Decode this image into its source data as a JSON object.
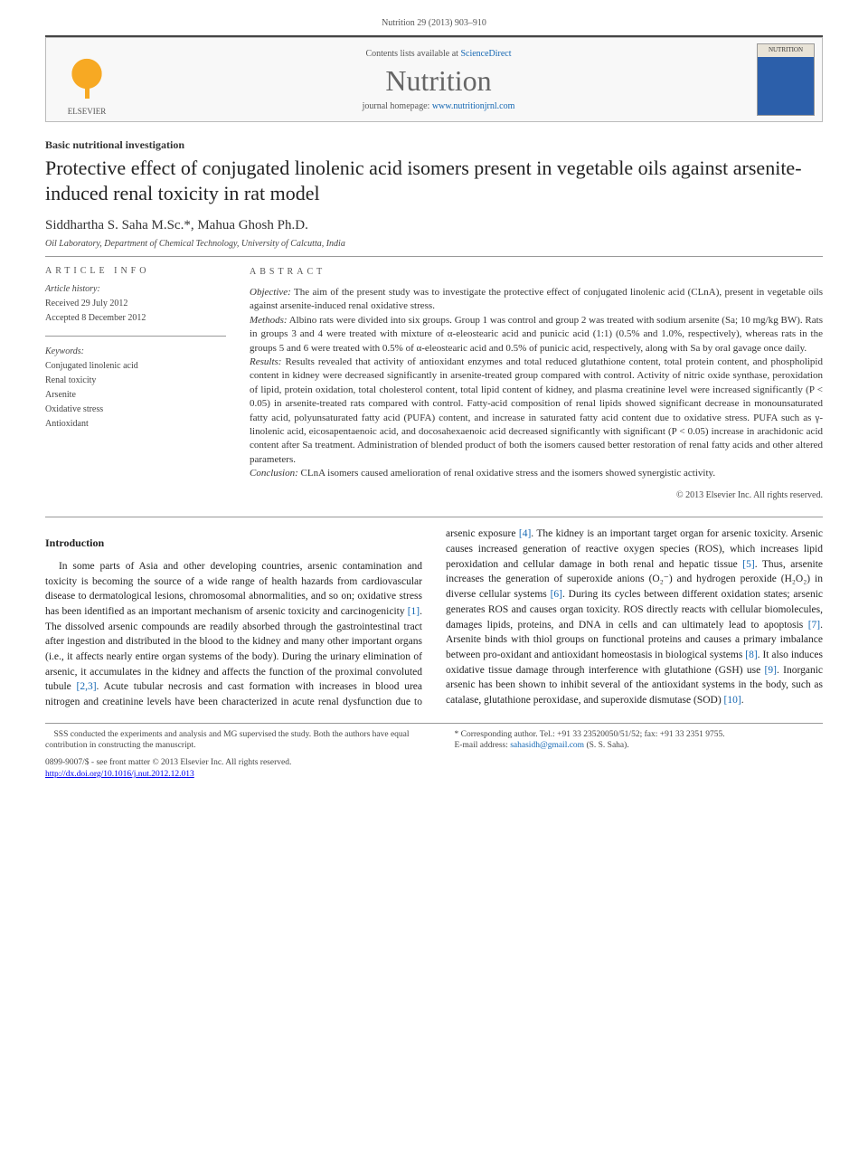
{
  "running_header": "Nutrition 29 (2013) 903–910",
  "masthead": {
    "publisher": "ELSEVIER",
    "contents_prefix": "Contents lists available at ",
    "contents_link_text": "ScienceDirect",
    "journal_name": "Nutrition",
    "homepage_prefix": "journal homepage: ",
    "homepage_link_text": "www.nutritionjrnl.com",
    "cover_label": "NUTRITION"
  },
  "article": {
    "type": "Basic nutritional investigation",
    "title": "Protective effect of conjugated linolenic acid isomers present in vegetable oils against arsenite-induced renal toxicity in rat model",
    "authors": "Siddhartha S. Saha M.Sc.*, Mahua Ghosh Ph.D.",
    "affiliation": "Oil Laboratory, Department of Chemical Technology, University of Calcutta, India"
  },
  "info": {
    "heading": "ARTICLE INFO",
    "history_label": "Article history:",
    "received": "Received 29 July 2012",
    "accepted": "Accepted 8 December 2012",
    "keywords_label": "Keywords:",
    "keywords": [
      "Conjugated linolenic acid",
      "Renal toxicity",
      "Arsenite",
      "Oxidative stress",
      "Antioxidant"
    ]
  },
  "abstract": {
    "heading": "ABSTRACT",
    "objective_label": "Objective:",
    "objective": " The aim of the present study was to investigate the protective effect of conjugated linolenic acid (CLnA), present in vegetable oils against arsenite-induced renal oxidative stress.",
    "methods_label": "Methods:",
    "methods": " Albino rats were divided into six groups. Group 1 was control and group 2 was treated with sodium arsenite (Sa; 10 mg/kg BW). Rats in groups 3 and 4 were treated with mixture of α-eleostearic acid and punicic acid (1:1) (0.5% and 1.0%, respectively), whereas rats in the groups 5 and 6 were treated with 0.5% of α-eleostearic acid and 0.5% of punicic acid, respectively, along with Sa by oral gavage once daily.",
    "results_label": "Results:",
    "results": " Results revealed that activity of antioxidant enzymes and total reduced glutathione content, total protein content, and phospholipid content in kidney were decreased significantly in arsenite-treated group compared with control. Activity of nitric oxide synthase, peroxidation of lipid, protein oxidation, total cholesterol content, total lipid content of kidney, and plasma creatinine level were increased significantly (P < 0.05) in arsenite-treated rats compared with control. Fatty-acid composition of renal lipids showed significant decrease in monounsaturated fatty acid, polyunsaturated fatty acid (PUFA) content, and increase in saturated fatty acid content due to oxidative stress. PUFA such as γ-linolenic acid, eicosapentaenoic acid, and docosahexaenoic acid decreased significantly with significant (P < 0.05) increase in arachidonic acid content after Sa treatment. Administration of blended product of both the isomers caused better restoration of renal fatty acids and other altered parameters.",
    "conclusion_label": "Conclusion:",
    "conclusion": " CLnA isomers caused amelioration of renal oxidative stress and the isomers showed synergistic activity.",
    "copyright": "© 2013 Elsevier Inc. All rights reserved."
  },
  "body": {
    "intro_heading": "Introduction",
    "p1a": "In some parts of Asia and other developing countries, arsenic contamination and toxicity is becoming the source of a wide range of health hazards from cardiovascular disease to dermatological lesions, chromosomal abnormalities, and so on; oxidative stress has been identified as an important mechanism of arsenic toxicity and carcinogenicity ",
    "ref1": "[1]",
    "p1b": ". The dissolved arsenic compounds are readily absorbed through the gastrointestinal tract after ingestion and distributed in the blood to the kidney and many other important organs (i.e., it affects nearly entire organ systems of the body). During the urinary elimination of arsenic, it accumulates in the kidney and affects the function of the proximal convoluted tubule ",
    "ref23": "[2,3]",
    "p1c": ". Acute tubular necrosis and ",
    "p2a": "cast formation with increases in blood urea nitrogen and creatinine levels have been characterized in acute renal dysfunction due to arsenic exposure ",
    "ref4": "[4]",
    "p2b": ". The kidney is an important target organ for arsenic toxicity. Arsenic causes increased generation of reactive oxygen species (ROS), which increases lipid peroxidation and cellular damage in both renal and hepatic tissue ",
    "ref5": "[5]",
    "p2c": ". Thus, arsenite increases the generation of superoxide anions (O₂⁻) and hydrogen peroxide (H₂O₂) in diverse cellular systems ",
    "ref6": "[6]",
    "p2d": ". During its cycles between different oxidation states; arsenic generates ROS and causes organ toxicity. ROS directly reacts with cellular biomolecules, damages lipids, proteins, and DNA in cells and can ultimately lead to apoptosis ",
    "ref7": "[7]",
    "p2e": ". Arsenite binds with thiol groups on functional proteins and causes a primary imbalance between pro-oxidant and antioxidant homeostasis in biological systems ",
    "ref8": "[8]",
    "p2f": ". It also induces oxidative tissue damage through interference with glutathione (GSH) use ",
    "ref9": "[9]",
    "p2g": ". Inorganic arsenic has been shown to inhibit several of the antioxidant systems in the body, such as catalase, glutathione peroxidase, and superoxide dismutase (SOD) ",
    "ref10": "[10]",
    "p2h": "."
  },
  "footnotes": {
    "contrib": "SSS conducted the experiments and analysis and MG supervised the study. Both the authors have equal contribution in constructing the manuscript.",
    "corr_label": "* Corresponding author. ",
    "corr_detail": "Tel.: +91 33 23520050/51/52; fax: +91 33 2351 9755.",
    "email_label": "E-mail address: ",
    "email": "sahasidh@gmail.com",
    "email_tail": " (S. S. Saha).",
    "issn_line": "0899-9007/$ - see front matter © 2013 Elsevier Inc. All rights reserved.",
    "doi_line": "http://dx.doi.org/10.1016/j.nut.2012.12.013"
  },
  "colors": {
    "link": "#1668b3",
    "rule": "#999999",
    "publisher_orange": "#f7a923"
  }
}
